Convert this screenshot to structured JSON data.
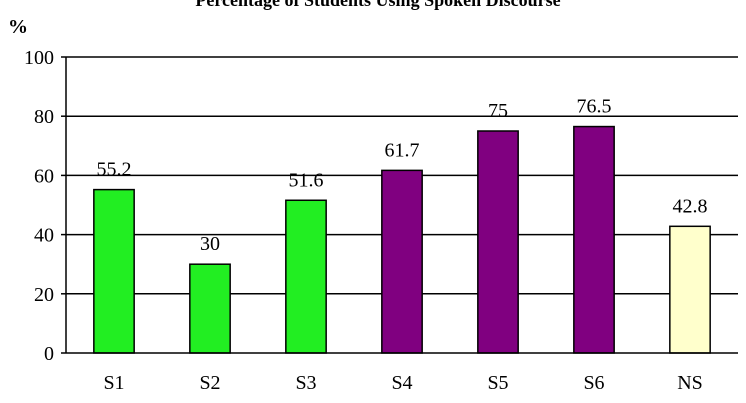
{
  "chart_data": {
    "type": "bar",
    "title": "Percentage of Students Using Spoken Discourse",
    "ylabel": "%",
    "xlabel": "",
    "ylim": [
      0,
      100
    ],
    "yticks": [
      0,
      20,
      40,
      60,
      80,
      100
    ],
    "grid": true,
    "categories": [
      "S1",
      "S2",
      "S3",
      "S4",
      "S5",
      "S6",
      "NS"
    ],
    "values": [
      55.2,
      30,
      51.6,
      61.7,
      75,
      76.5,
      42.8
    ],
    "value_labels": [
      "55.2",
      "30",
      "51.6",
      "61.7",
      "75",
      "76.5",
      "42.8"
    ],
    "bar_colors": [
      "#22ee22",
      "#22ee22",
      "#22ee22",
      "#800080",
      "#800080",
      "#800080",
      "#ffffcc"
    ]
  }
}
